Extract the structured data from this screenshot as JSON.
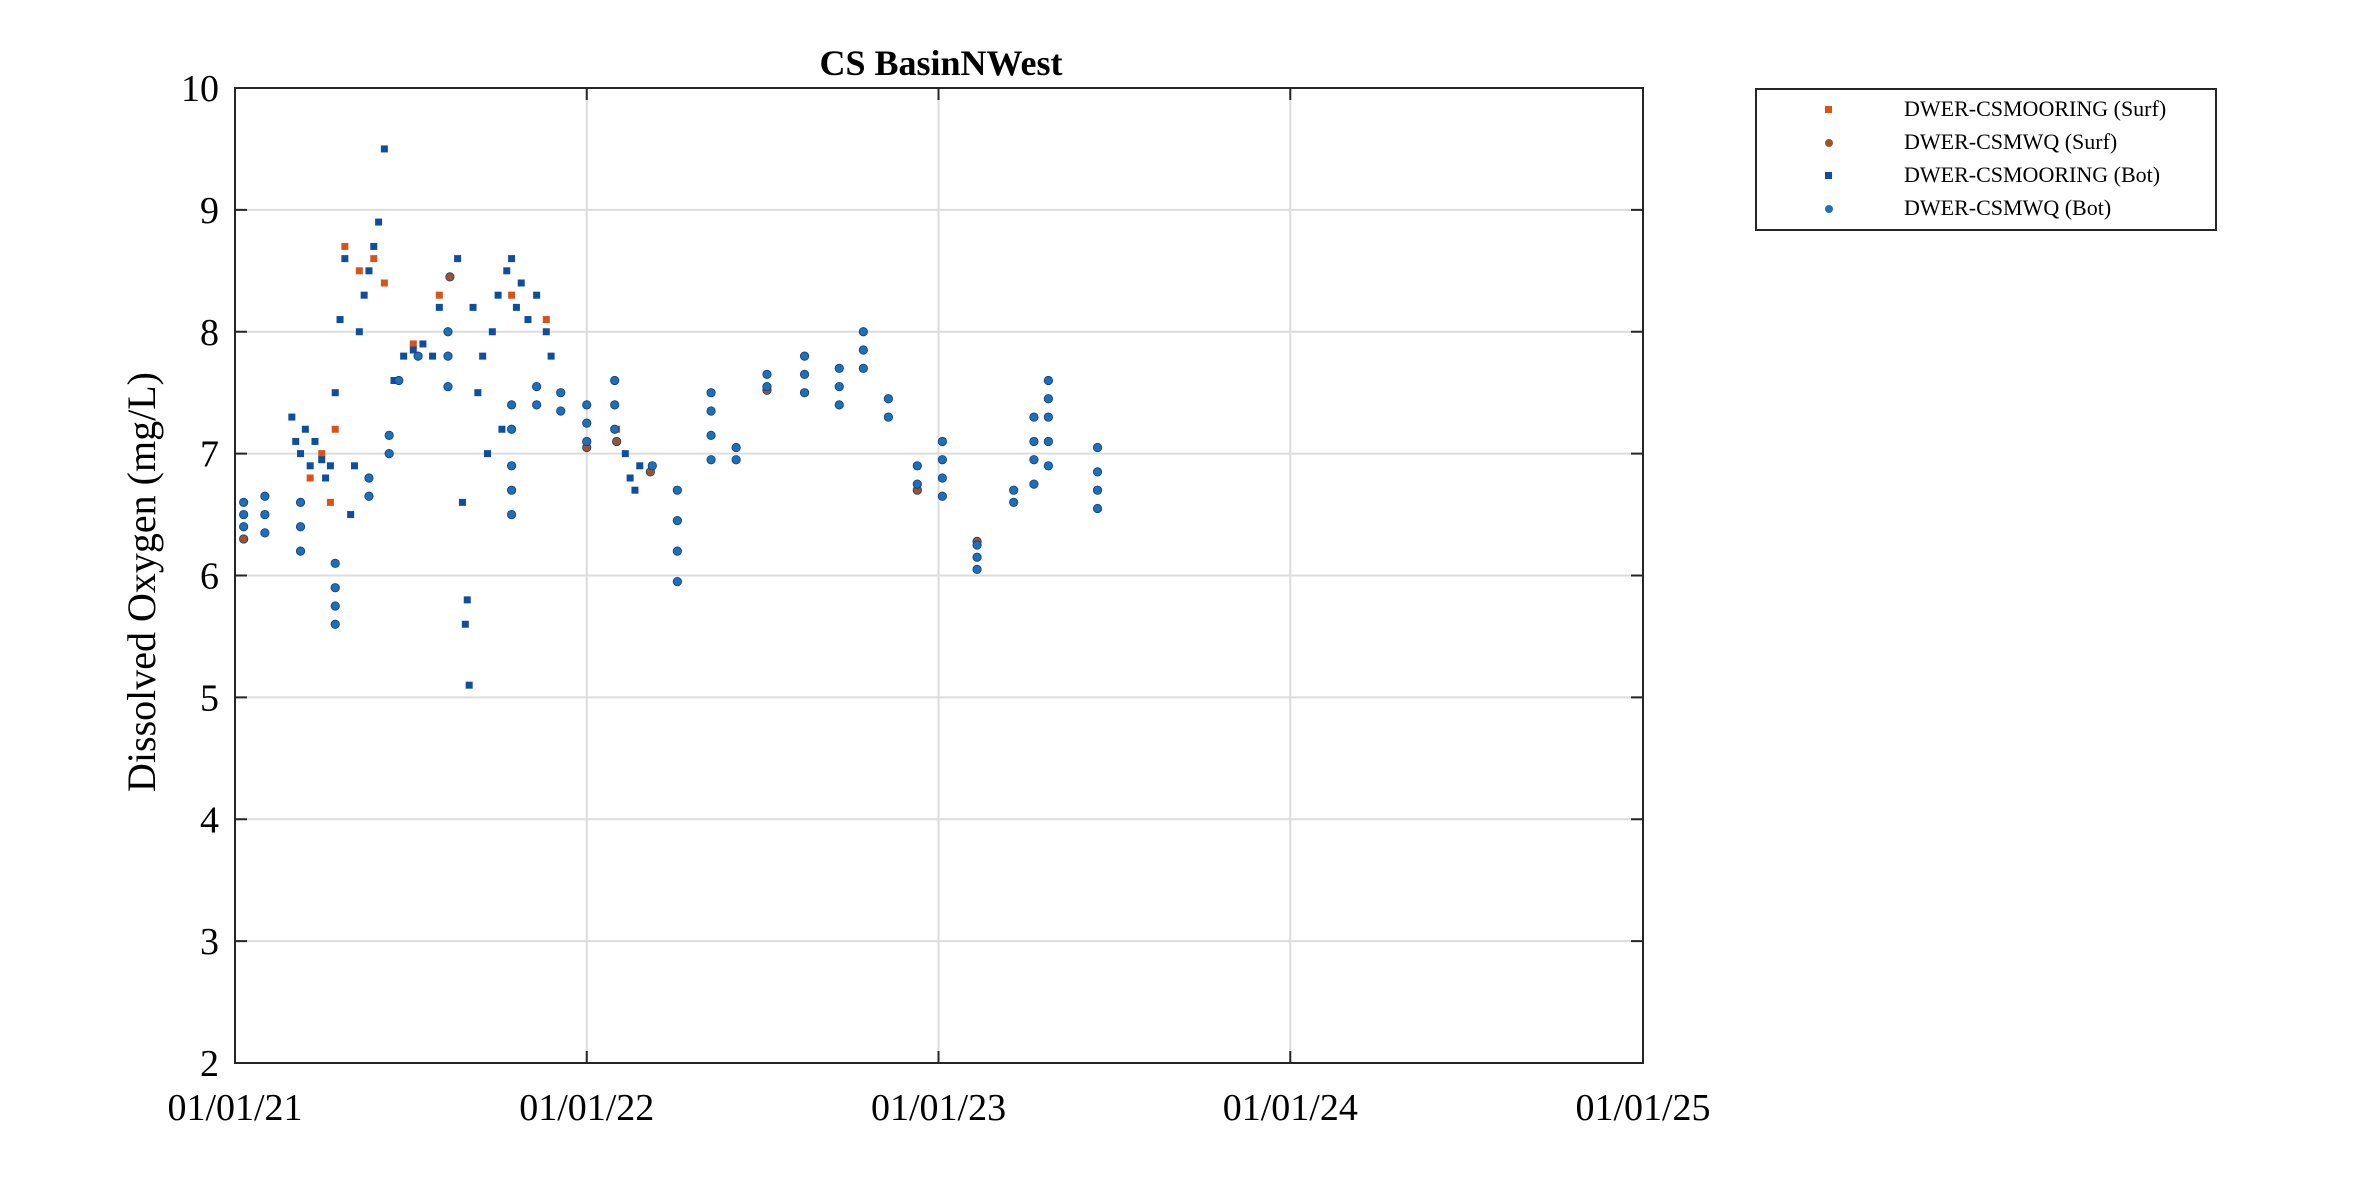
{
  "chart_data": {
    "type": "scatter",
    "title": "CS BasinNWest",
    "ylabel": "Dissolved Oxygen (mg/L)",
    "xlabel": "",
    "xlim": [
      "2021-01-01",
      "2025-01-01"
    ],
    "ylim": [
      2,
      10
    ],
    "x_ticks": [
      "01/01/21",
      "01/01/22",
      "01/01/23",
      "01/01/24",
      "01/01/25"
    ],
    "y_ticks": [
      "2",
      "3",
      "4",
      "5",
      "6",
      "7",
      "8",
      "9",
      "10"
    ],
    "grid": true,
    "legend_position": "outside-top-right",
    "series": [
      {
        "name": "DWER-CSMOORING (Surf)",
        "color": "#d95319",
        "marker": "square",
        "points": [
          [
            "2021-03-20",
            6.8
          ],
          [
            "2021-04-01",
            7.0
          ],
          [
            "2021-04-10",
            6.6
          ],
          [
            "2021-04-15",
            7.2
          ],
          [
            "2021-04-25",
            8.7
          ],
          [
            "2021-05-10",
            8.5
          ],
          [
            "2021-05-25",
            8.6
          ],
          [
            "2021-06-05",
            8.4
          ],
          [
            "2021-07-05",
            7.9
          ],
          [
            "2021-08-01",
            8.3
          ],
          [
            "2021-10-15",
            8.3
          ],
          [
            "2021-11-20",
            8.1
          ],
          [
            "2022-02-01",
            7.2
          ]
        ]
      },
      {
        "name": "DWER-CSMWQ (Surf)",
        "color": "#a0522d",
        "marker": "circle",
        "points": [
          [
            "2021-01-10",
            6.3
          ],
          [
            "2021-08-12",
            8.45
          ],
          [
            "2022-01-01",
            7.05
          ],
          [
            "2022-02-01",
            7.1
          ],
          [
            "2022-03-08",
            6.85
          ],
          [
            "2022-07-07",
            7.52
          ],
          [
            "2022-12-10",
            6.7
          ],
          [
            "2023-02-10",
            6.28
          ]
        ]
      },
      {
        "name": "DWER-CSMOORING (Bot)",
        "color": "#0d4f9e",
        "marker": "square",
        "points": [
          [
            "2021-03-01",
            7.3
          ],
          [
            "2021-03-05",
            7.1
          ],
          [
            "2021-03-10",
            7.0
          ],
          [
            "2021-03-15",
            7.2
          ],
          [
            "2021-03-20",
            6.9
          ],
          [
            "2021-03-25",
            7.1
          ],
          [
            "2021-04-01",
            6.95
          ],
          [
            "2021-04-05",
            6.8
          ],
          [
            "2021-04-10",
            6.9
          ],
          [
            "2021-04-15",
            7.5
          ],
          [
            "2021-04-20",
            8.1
          ],
          [
            "2021-04-25",
            8.6
          ],
          [
            "2021-05-01",
            6.5
          ],
          [
            "2021-05-05",
            6.9
          ],
          [
            "2021-05-10",
            8.0
          ],
          [
            "2021-05-15",
            8.3
          ],
          [
            "2021-05-20",
            8.5
          ],
          [
            "2021-05-25",
            8.7
          ],
          [
            "2021-05-30",
            8.9
          ],
          [
            "2021-06-05",
            9.5
          ],
          [
            "2021-06-15",
            7.6
          ],
          [
            "2021-06-25",
            7.8
          ],
          [
            "2021-07-05",
            7.85
          ],
          [
            "2021-07-15",
            7.9
          ],
          [
            "2021-07-25",
            7.8
          ],
          [
            "2021-08-01",
            8.2
          ],
          [
            "2021-08-20",
            8.6
          ],
          [
            "2021-08-25",
            6.6
          ],
          [
            "2021-08-28",
            5.6
          ],
          [
            "2021-08-30",
            5.8
          ],
          [
            "2021-09-01",
            5.1
          ],
          [
            "2021-09-05",
            8.2
          ],
          [
            "2021-09-10",
            7.5
          ],
          [
            "2021-09-15",
            7.8
          ],
          [
            "2021-09-20",
            7.0
          ],
          [
            "2021-09-25",
            8.0
          ],
          [
            "2021-10-01",
            8.3
          ],
          [
            "2021-10-05",
            7.2
          ],
          [
            "2021-10-10",
            8.5
          ],
          [
            "2021-10-15",
            8.6
          ],
          [
            "2021-10-20",
            8.2
          ],
          [
            "2021-10-25",
            8.4
          ],
          [
            "2021-11-01",
            8.1
          ],
          [
            "2021-11-10",
            8.3
          ],
          [
            "2021-11-20",
            8.0
          ],
          [
            "2021-11-25",
            7.8
          ],
          [
            "2022-02-10",
            7.0
          ],
          [
            "2022-02-15",
            6.8
          ],
          [
            "2022-02-20",
            6.7
          ],
          [
            "2022-02-25",
            6.9
          ]
        ]
      },
      {
        "name": "DWER-CSMWQ (Bot)",
        "color": "#1f6fb8",
        "marker": "circle",
        "points": [
          [
            "2021-01-10",
            6.4
          ],
          [
            "2021-01-10",
            6.5
          ],
          [
            "2021-01-10",
            6.6
          ],
          [
            "2021-02-01",
            6.35
          ],
          [
            "2021-02-01",
            6.5
          ],
          [
            "2021-02-01",
            6.65
          ],
          [
            "2021-03-10",
            6.2
          ],
          [
            "2021-03-10",
            6.4
          ],
          [
            "2021-03-10",
            6.6
          ],
          [
            "2021-04-15",
            5.6
          ],
          [
            "2021-04-15",
            5.75
          ],
          [
            "2021-04-15",
            5.9
          ],
          [
            "2021-04-15",
            6.1
          ],
          [
            "2021-05-20",
            6.65
          ],
          [
            "2021-05-20",
            6.8
          ],
          [
            "2021-06-10",
            7.0
          ],
          [
            "2021-06-10",
            7.15
          ],
          [
            "2021-06-20",
            7.6
          ],
          [
            "2021-07-10",
            7.8
          ],
          [
            "2021-08-10",
            7.55
          ],
          [
            "2021-08-10",
            7.8
          ],
          [
            "2021-08-10",
            8.0
          ],
          [
            "2021-10-15",
            6.5
          ],
          [
            "2021-10-15",
            6.7
          ],
          [
            "2021-10-15",
            6.9
          ],
          [
            "2021-10-15",
            7.2
          ],
          [
            "2021-10-15",
            7.4
          ],
          [
            "2021-11-10",
            7.4
          ],
          [
            "2021-11-10",
            7.55
          ],
          [
            "2021-12-05",
            7.35
          ],
          [
            "2021-12-05",
            7.5
          ],
          [
            "2022-01-01",
            7.1
          ],
          [
            "2022-01-01",
            7.25
          ],
          [
            "2022-01-01",
            7.4
          ],
          [
            "2022-01-30",
            7.2
          ],
          [
            "2022-01-30",
            7.4
          ],
          [
            "2022-01-30",
            7.6
          ],
          [
            "2022-03-10",
            6.9
          ],
          [
            "2022-04-05",
            5.95
          ],
          [
            "2022-04-05",
            6.2
          ],
          [
            "2022-04-05",
            6.45
          ],
          [
            "2022-04-05",
            6.7
          ],
          [
            "2022-05-10",
            6.95
          ],
          [
            "2022-05-10",
            7.15
          ],
          [
            "2022-05-10",
            7.35
          ],
          [
            "2022-05-10",
            7.5
          ],
          [
            "2022-06-05",
            6.95
          ],
          [
            "2022-06-05",
            7.05
          ],
          [
            "2022-07-07",
            7.55
          ],
          [
            "2022-07-07",
            7.65
          ],
          [
            "2022-08-15",
            7.5
          ],
          [
            "2022-08-15",
            7.65
          ],
          [
            "2022-08-15",
            7.8
          ],
          [
            "2022-09-20",
            7.4
          ],
          [
            "2022-09-20",
            7.55
          ],
          [
            "2022-09-20",
            7.7
          ],
          [
            "2022-10-15",
            7.7
          ],
          [
            "2022-10-15",
            7.85
          ],
          [
            "2022-10-15",
            8.0
          ],
          [
            "2022-11-10",
            7.3
          ],
          [
            "2022-11-10",
            7.45
          ],
          [
            "2022-12-10",
            6.75
          ],
          [
            "2022-12-10",
            6.9
          ],
          [
            "2023-01-05",
            6.65
          ],
          [
            "2023-01-05",
            6.8
          ],
          [
            "2023-01-05",
            6.95
          ],
          [
            "2023-01-05",
            7.1
          ],
          [
            "2023-02-10",
            6.05
          ],
          [
            "2023-02-10",
            6.15
          ],
          [
            "2023-02-10",
            6.25
          ],
          [
            "2023-03-20",
            6.6
          ],
          [
            "2023-03-20",
            6.7
          ],
          [
            "2023-04-10",
            6.75
          ],
          [
            "2023-04-10",
            6.95
          ],
          [
            "2023-04-10",
            7.1
          ],
          [
            "2023-04-10",
            7.3
          ],
          [
            "2023-04-25",
            6.9
          ],
          [
            "2023-04-25",
            7.1
          ],
          [
            "2023-04-25",
            7.3
          ],
          [
            "2023-04-25",
            7.45
          ],
          [
            "2023-04-25",
            7.6
          ],
          [
            "2023-06-15",
            6.55
          ],
          [
            "2023-06-15",
            6.7
          ],
          [
            "2023-06-15",
            6.85
          ],
          [
            "2023-06-15",
            7.05
          ]
        ]
      }
    ]
  }
}
